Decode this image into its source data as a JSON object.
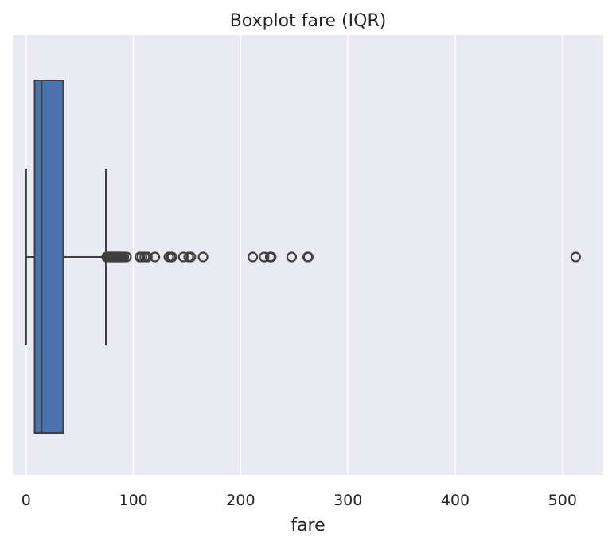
{
  "chart_data": {
    "type": "boxplot",
    "title": "Boxplot fare (IQR)",
    "xlabel": "fare",
    "ylabel": "",
    "orientation": "horizontal",
    "xlim": [
      -12.5,
      538
    ],
    "xticks": [
      0,
      100,
      200,
      300,
      400,
      500
    ],
    "grid": true,
    "box": {
      "min": 0,
      "q1": 7.9,
      "median": 14.45,
      "q3": 34.6,
      "whisker_low": 0,
      "whisker_high": 74.3
    },
    "outliers": [
      75.0,
      76.0,
      77.0,
      78.0,
      79.0,
      80.0,
      81.0,
      82.0,
      83.0,
      84.0,
      85.0,
      86.0,
      87.0,
      88.0,
      89.0,
      90.0,
      91.0,
      93.5,
      106.0,
      108.0,
      110.5,
      113.0,
      120.0,
      133.0,
      135.0,
      136.0,
      146.5,
      151.5,
      153.5,
      164.9,
      211.3,
      221.8,
      227.5,
      228.5,
      247.5,
      262.4,
      263.0,
      512.3
    ]
  },
  "colors": {
    "plot_background": "#EAEAF2",
    "grid": "#FFFFFF",
    "box_fill": "#4C72B0",
    "line": "#3F3F3F",
    "text": "#262626"
  }
}
